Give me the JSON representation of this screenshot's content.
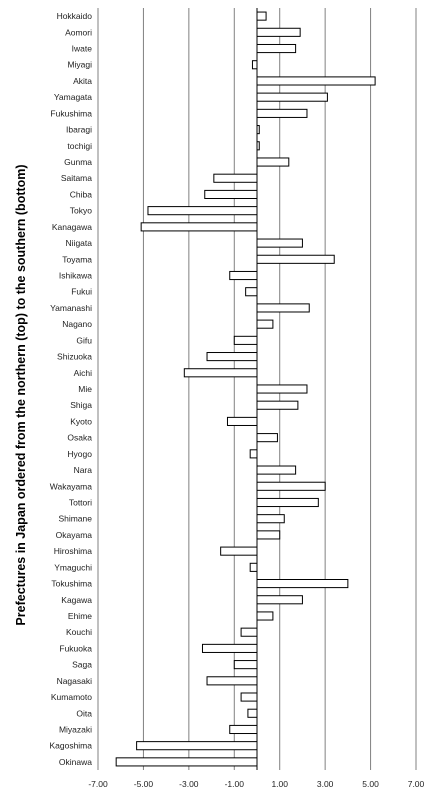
{
  "chart_data": {
    "type": "bar",
    "orientation": "horizontal",
    "title": "",
    "xlabel": "",
    "ylabel": "Prefectures in Japan ordered from the northern (top) to the southern (bottom)",
    "xlim": [
      -7,
      7
    ],
    "xticks": [
      -7,
      -5,
      -3,
      -1,
      1,
      3,
      5,
      7
    ],
    "xtick_labels": [
      "-7.00",
      "-5.00",
      "-3.00",
      "-1.00",
      "1.00",
      "3.00",
      "5.00",
      "7.00"
    ],
    "grid": "vertical",
    "categories": [
      "Hokkaido",
      "Aomori",
      "Iwate",
      "Miyagi",
      "Akita",
      "Yamagata",
      "Fukushima",
      "Ibaragi",
      "tochigi",
      "Gunma",
      "Saitama",
      "Chiba",
      "Tokyo",
      "Kanagawa",
      "Niigata",
      "Toyama",
      "Ishikawa",
      "Fukui",
      "Yamanashi",
      "Nagano",
      "Gifu",
      "Shizuoka",
      "Aichi",
      "Mie",
      "Shiga",
      "Kyoto",
      "Osaka",
      "Hyogo",
      "Nara",
      "Wakayama",
      "Tottori",
      "Shimane",
      "Okayama",
      "Hiroshima",
      "Ymaguchi",
      "Tokushima",
      "Kagawa",
      "Ehime",
      "Kouchi",
      "Fukuoka",
      "Saga",
      "Nagasaki",
      "Kumamoto",
      "Oita",
      "Miyazaki",
      "Kagoshima",
      "Okinawa"
    ],
    "values": [
      0.4,
      1.9,
      1.7,
      -0.2,
      5.2,
      3.1,
      2.2,
      0.1,
      0.1,
      1.4,
      -1.9,
      -2.3,
      -4.8,
      -5.1,
      2.0,
      3.4,
      -1.2,
      -0.5,
      2.3,
      0.7,
      -1.0,
      -2.2,
      -3.2,
      2.2,
      1.8,
      -1.3,
      0.9,
      -0.3,
      1.7,
      3.0,
      2.7,
      1.2,
      1.0,
      -1.6,
      -0.3,
      4.0,
      2.0,
      0.7,
      -0.7,
      -2.4,
      -1.0,
      -2.2,
      -0.7,
      -0.4,
      -1.2,
      -5.3,
      -6.2
    ],
    "colors": {
      "bar_fill": "#ffffff",
      "bar_stroke": "#000000",
      "grid": "#808080"
    }
  }
}
